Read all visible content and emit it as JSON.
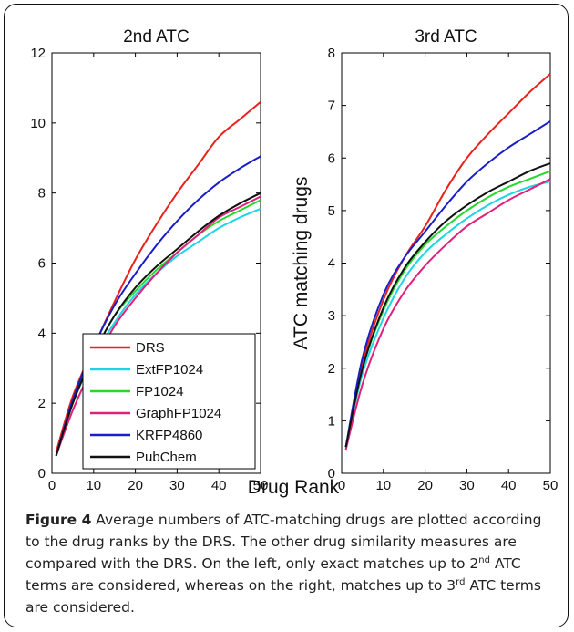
{
  "chart_data": [
    {
      "type": "line",
      "title": "2nd ATC",
      "xlabel": "",
      "ylabel": "",
      "xlim": [
        0,
        50
      ],
      "ylim": [
        0,
        12
      ],
      "xticks": [
        "0",
        "10",
        "20",
        "30",
        "40",
        "50"
      ],
      "yticks": [
        "0",
        "2",
        "4",
        "6",
        "8",
        "10",
        "12"
      ],
      "x": [
        1,
        5,
        10,
        15,
        20,
        25,
        30,
        35,
        40,
        45,
        50
      ],
      "legend_position": "bottom-right",
      "series": [
        {
          "name": "DRS",
          "color": "#e8221b",
          "values": [
            0.6,
            2.2,
            3.6,
            4.9,
            6.1,
            7.1,
            8.0,
            8.8,
            9.6,
            10.1,
            10.6
          ]
        },
        {
          "name": "ExtFP1024",
          "color": "#1fd3e6",
          "values": [
            0.5,
            2.0,
            3.3,
            4.3,
            5.1,
            5.7,
            6.2,
            6.6,
            7.0,
            7.3,
            7.55
          ]
        },
        {
          "name": "FP1024",
          "color": "#23d92b",
          "values": [
            0.5,
            2.0,
            3.4,
            4.5,
            5.2,
            5.8,
            6.3,
            6.8,
            7.2,
            7.5,
            7.8
          ]
        },
        {
          "name": "GraphFP1024",
          "color": "#e0207a",
          "values": [
            0.5,
            1.8,
            3.1,
            4.2,
            5.0,
            5.7,
            6.3,
            6.8,
            7.3,
            7.6,
            7.9
          ]
        },
        {
          "name": "KRFP4860",
          "color": "#1a1ec7",
          "values": [
            0.5,
            2.1,
            3.6,
            4.8,
            5.7,
            6.5,
            7.2,
            7.8,
            8.3,
            8.7,
            9.05
          ]
        },
        {
          "name": "PubChem",
          "color": "#111111",
          "values": [
            0.5,
            2.0,
            3.4,
            4.5,
            5.3,
            5.9,
            6.4,
            6.9,
            7.35,
            7.7,
            8.0
          ]
        }
      ]
    },
    {
      "type": "line",
      "title": "3rd ATC",
      "xlabel": "Drug Rank",
      "ylabel": "ATC matching drugs",
      "xlim": [
        0,
        50
      ],
      "ylim": [
        0,
        8
      ],
      "xticks": [
        "0",
        "10",
        "20",
        "30",
        "40",
        "50"
      ],
      "yticks": [
        "0",
        "1",
        "2",
        "3",
        "4",
        "5",
        "6",
        "7",
        "8"
      ],
      "x": [
        1,
        5,
        10,
        15,
        20,
        25,
        30,
        35,
        40,
        45,
        50
      ],
      "series": [
        {
          "name": "DRS",
          "color": "#e8221b",
          "values": [
            0.5,
            2.1,
            3.3,
            4.1,
            4.7,
            5.4,
            6.0,
            6.45,
            6.85,
            7.25,
            7.6
          ]
        },
        {
          "name": "ExtFP1024",
          "color": "#1fd3e6",
          "values": [
            0.5,
            1.9,
            2.95,
            3.7,
            4.2,
            4.55,
            4.85,
            5.1,
            5.3,
            5.45,
            5.55
          ]
        },
        {
          "name": "FP1024",
          "color": "#23d92b",
          "values": [
            0.5,
            2.0,
            3.1,
            3.85,
            4.35,
            4.7,
            5.0,
            5.25,
            5.45,
            5.6,
            5.75
          ]
        },
        {
          "name": "GraphFP1024",
          "color": "#e0207a",
          "values": [
            0.45,
            1.7,
            2.75,
            3.45,
            3.95,
            4.35,
            4.7,
            4.95,
            5.2,
            5.4,
            5.6
          ]
        },
        {
          "name": "KRFP4860",
          "color": "#1a1ec7",
          "values": [
            0.5,
            2.2,
            3.4,
            4.1,
            4.6,
            5.1,
            5.55,
            5.9,
            6.2,
            6.45,
            6.7
          ]
        },
        {
          "name": "PubChem",
          "color": "#111111",
          "values": [
            0.5,
            2.0,
            3.15,
            3.9,
            4.4,
            4.8,
            5.1,
            5.35,
            5.55,
            5.75,
            5.9
          ]
        }
      ]
    }
  ],
  "caption": {
    "label": "Figure 4",
    "text_1": " Average numbers of ATC-matching drugs are plotted according to the drug ranks by the DRS. The other drug similarity measures are compared with the DRS. On the left, only exact matches up to 2",
    "sup_1": "nd",
    "text_2": " ATC terms are considered, whereas on the right, matches up to 3",
    "sup_2": "rd",
    "text_3": " ATC terms are considered."
  }
}
